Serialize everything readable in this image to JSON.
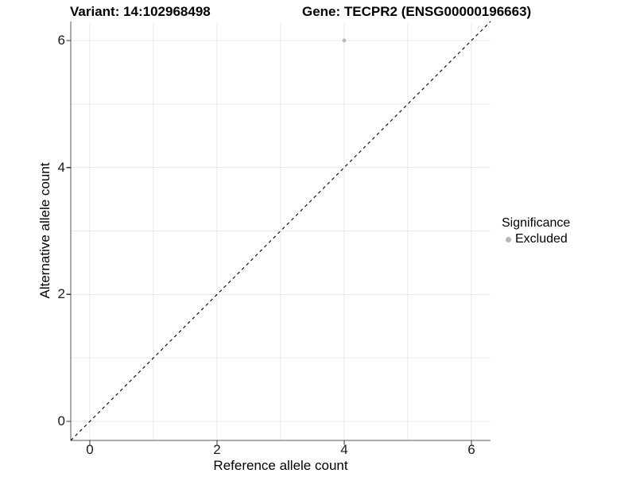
{
  "chart_data": {
    "type": "scatter",
    "title_left": "Variant: 14:102968498",
    "title_right": "Gene: TECPR2 (ENSG00000196663)",
    "xlabel": "Reference allele count",
    "ylabel": "Alternative allele count",
    "xlim": [
      -0.3,
      6.3
    ],
    "ylim": [
      -0.3,
      6.3
    ],
    "x_ticks": [
      0,
      2,
      4,
      6
    ],
    "y_ticks": [
      0,
      2,
      4,
      6
    ],
    "grid": {
      "show": true,
      "every": 1,
      "from": 0,
      "to": 6,
      "color": "#e9e9e9"
    },
    "series": [
      {
        "name": "Excluded",
        "color": "#b9b9b9",
        "marker": "circle",
        "points": [
          {
            "x": 4,
            "y": 6
          }
        ]
      }
    ],
    "reference_line": {
      "kind": "identity",
      "slope": 1,
      "intercept": 0,
      "linestyle": "dashed",
      "color": "#000000"
    },
    "legend": {
      "title": "Significance",
      "position": "right",
      "entries": [
        {
          "label": "Excluded",
          "color": "#b5b5b5"
        }
      ]
    }
  },
  "colors": {
    "background": "#ffffff",
    "axis_line": "#595959",
    "tick_mark": "#333333",
    "tick_text": "#1a1a1a",
    "title_text": "#000000"
  }
}
